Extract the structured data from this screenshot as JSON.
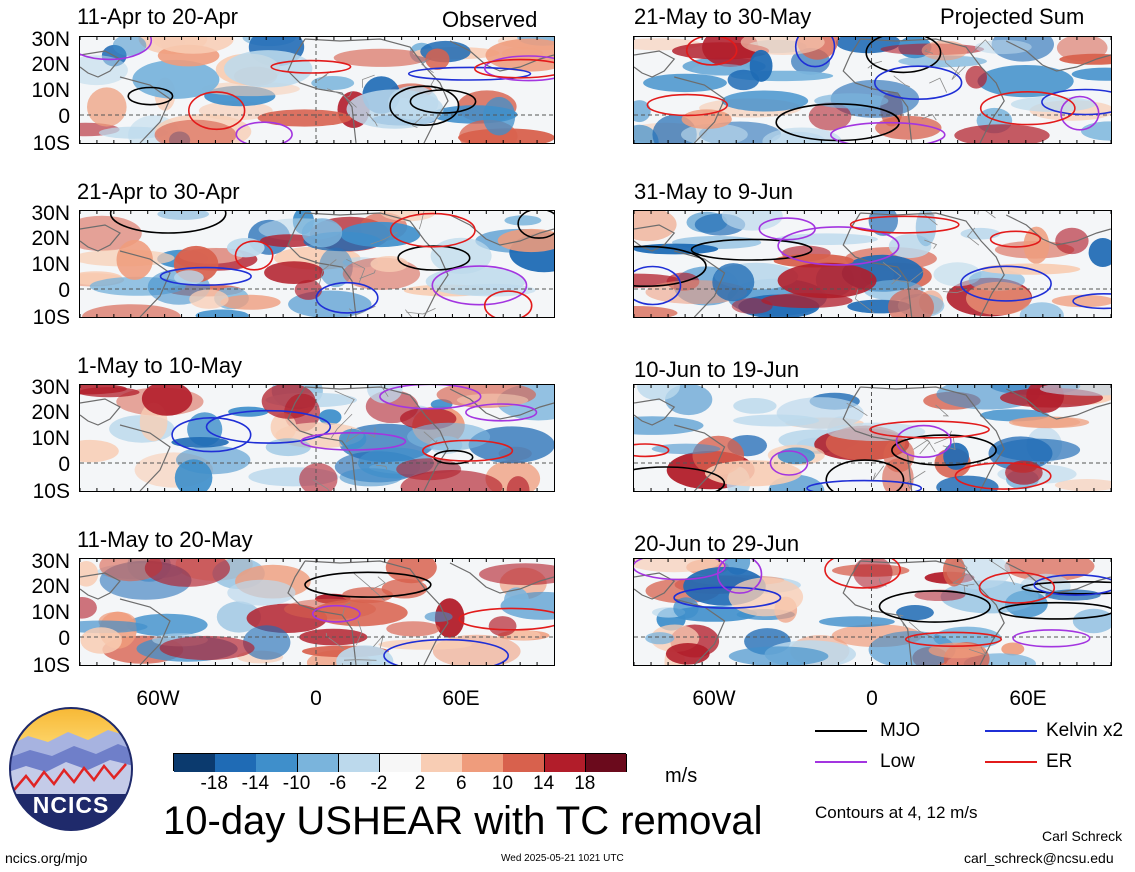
{
  "header": {
    "observed_label": "Observed",
    "projected_label": "Projected Sum"
  },
  "panels": [
    {
      "title": "11-Apr to 20-Apr",
      "column": "observed"
    },
    {
      "title": "21-Apr to 30-Apr",
      "column": "observed"
    },
    {
      "title": "1-May to 10-May",
      "column": "observed"
    },
    {
      "title": "11-May to 20-May",
      "column": "observed"
    },
    {
      "title": "21-May to 30-May",
      "column": "projected"
    },
    {
      "title": "31-May to 9-Jun",
      "column": "projected"
    },
    {
      "title": "10-Jun to 19-Jun",
      "column": "projected"
    },
    {
      "title": "20-Jun to 29-Jun",
      "column": "projected"
    }
  ],
  "lat_labels": [
    "30N",
    "20N",
    "10N",
    "0",
    "10S"
  ],
  "lon_labels": [
    "60W",
    "0",
    "60E"
  ],
  "colorbar": {
    "ticks": [
      "-18",
      "-14",
      "-10",
      "-6",
      "-2",
      "2",
      "6",
      "10",
      "14",
      "18"
    ],
    "colors": [
      "#0b3a6e",
      "#1f6bb5",
      "#3f8fcb",
      "#7ab4dc",
      "#bcd9ec",
      "#f7f7f7",
      "#f8cdb4",
      "#ef9c7c",
      "#d8614d",
      "#b21d2a",
      "#6b0a1c"
    ],
    "units": "m/s"
  },
  "legend": {
    "items": [
      {
        "label": "MJO",
        "color": "#000000"
      },
      {
        "label": "Kelvin x2",
        "color": "#1f2fd6"
      },
      {
        "label": "Low",
        "color": "#a335e0"
      },
      {
        "label": "ER",
        "color": "#e21b1b"
      }
    ],
    "contours_note": "Contours at 4, 12 m/s"
  },
  "footer": {
    "title": "10-day USHEAR with TC removal",
    "logo_text": "NCICS",
    "website": "ncics.org/mjo",
    "timestamp": "Wed 2025-05-21 1021 UTC",
    "author": "Carl Schreck",
    "email": "carl_schreck@ncsu.edu"
  }
}
